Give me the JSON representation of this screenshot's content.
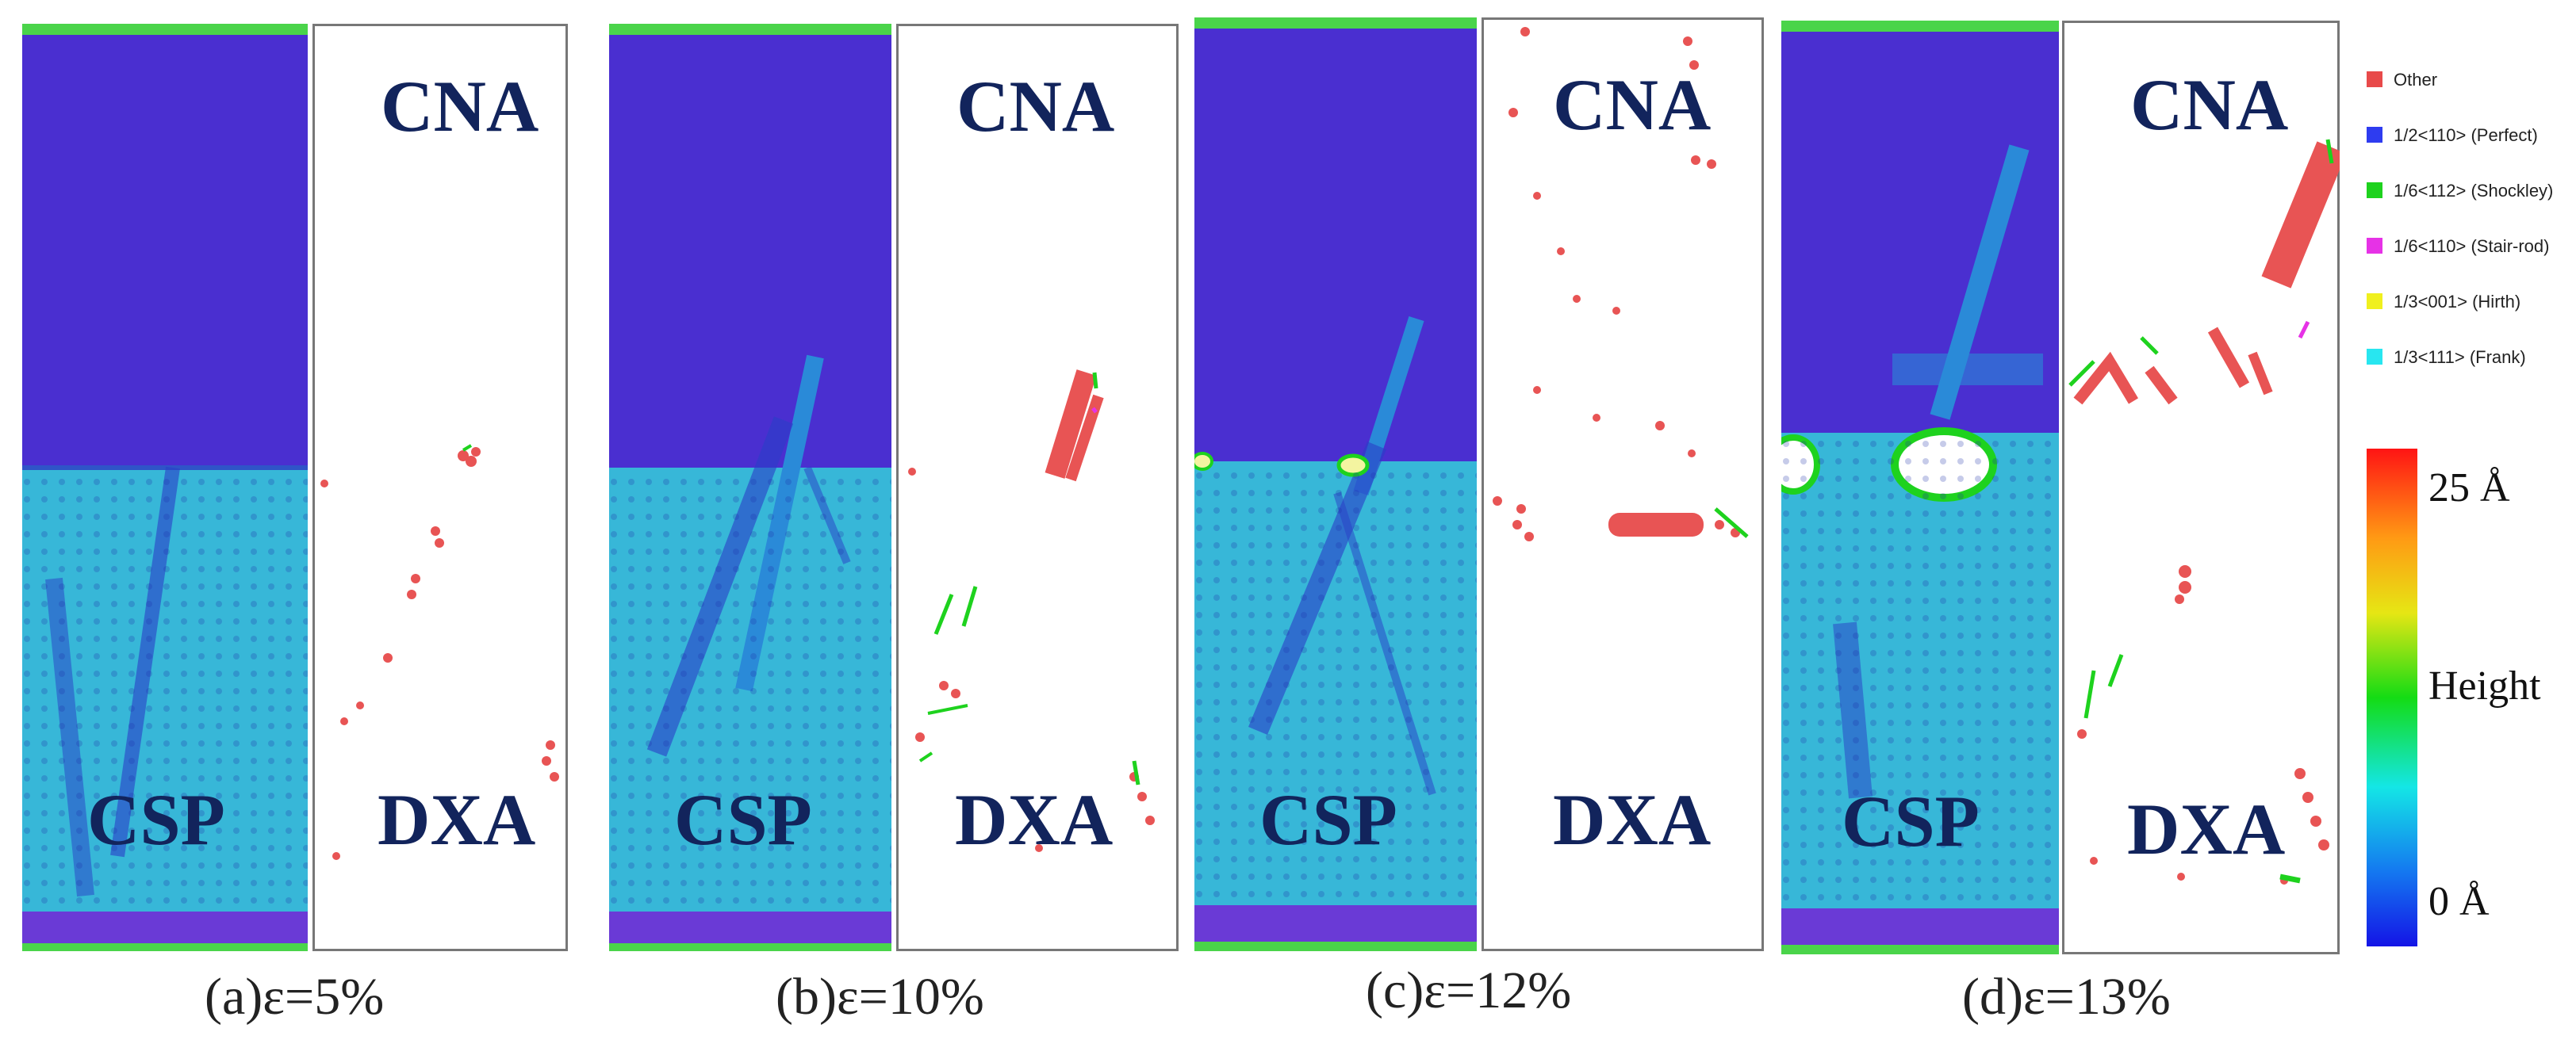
{
  "panels": [
    {
      "label": "(a)ε=5%",
      "csp_tag": "CSP",
      "cna_tag": "CNA",
      "dxa_tag": "DXA"
    },
    {
      "label": "(b)ε=10%",
      "csp_tag": "CSP",
      "cna_tag": "CNA",
      "dxa_tag": "DXA"
    },
    {
      "label": "(c)ε=12%",
      "csp_tag": "CSP",
      "cna_tag": "CNA",
      "dxa_tag": "DXA"
    },
    {
      "label": "(d)ε=13%",
      "csp_tag": "CSP",
      "cna_tag": "CNA",
      "dxa_tag": "DXA"
    }
  ],
  "legend": [
    {
      "label": "Other",
      "color": "#e84a4a"
    },
    {
      "label": "1/2<110> (Perfect)",
      "color": "#2e3cf0"
    },
    {
      "label": "1/6<112> (Shockley)",
      "color": "#1ed21e"
    },
    {
      "label": "1/6<110> (Stair-rod)",
      "color": "#e632e6"
    },
    {
      "label": "1/3<001> (Hirth)",
      "color": "#f0f01e"
    },
    {
      "label": "1/3<111> (Frank)",
      "color": "#28e6f0"
    }
  ],
  "colorbar": {
    "max_label": "25 Å",
    "mid_label": "Height",
    "min_label": "0 Å"
  },
  "colors": {
    "lattice_top": "#4a2fd0",
    "lattice_bottom": "#37b7d8",
    "atom_other": "#e85454",
    "boundary": "#4ad44a"
  }
}
